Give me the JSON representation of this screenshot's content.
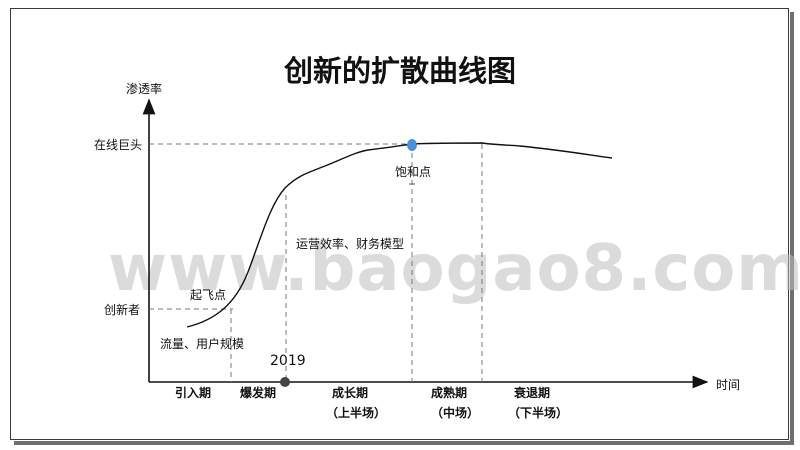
{
  "title": "创新的扩散曲线图",
  "axes": {
    "y_label": "渗透率",
    "x_label": "时间",
    "y_ticks": [
      "在线巨头",
      "创新者"
    ]
  },
  "annotations": {
    "takeoff": "起飞点",
    "saturation": "饱和点",
    "traffic": "流量、用户规模",
    "ops": "运营效率、财务模型",
    "year": "2019"
  },
  "phases": [
    {
      "label": "引入期",
      "sub": ""
    },
    {
      "label": "爆发期",
      "sub": ""
    },
    {
      "label": "成长期",
      "sub": "（上半场）"
    },
    {
      "label": "成熟期",
      "sub": "（中场）"
    },
    {
      "label": "衰退期",
      "sub": "（下半场）"
    }
  ],
  "watermark": "www.baogao8.com",
  "colors": {
    "saturation_point": "#4a90d9",
    "year_point": "#444444",
    "line": "#111111",
    "guide": "#777777"
  }
}
